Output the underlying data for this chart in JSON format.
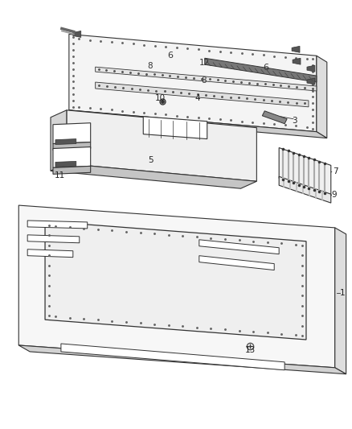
{
  "bg_color": "#ffffff",
  "line_color": "#333333",
  "label_color": "#333333",
  "fig_width": 4.38,
  "fig_height": 5.33,
  "dpi": 100,
  "label_fs": 7.5
}
